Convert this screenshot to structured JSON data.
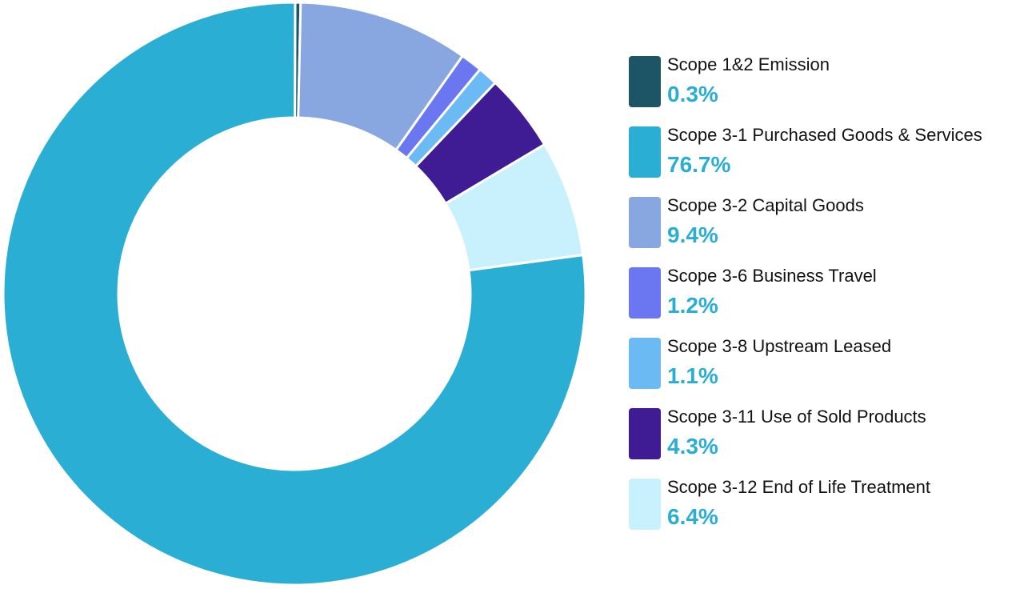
{
  "chart_data": {
    "type": "pie",
    "title": "",
    "categories": [
      "Scope 1&2 Emission",
      "Scope 3-1 Purchased Goods & Services",
      "Scope 3-2 Capital Goods",
      "Scope 3-6 Business Travel",
      "Scope 3-8 Upstream Leased",
      "Scope 3-11 Use of Sold Products",
      "Scope 3-12 End of Life Treatment"
    ],
    "values": [
      0.3,
      76.7,
      9.4,
      1.2,
      1.1,
      4.3,
      6.4
    ],
    "value_labels": [
      "0.3%",
      "76.7%",
      "9.4%",
      "1.2%",
      "1.1%",
      "4.3%",
      "6.4%"
    ],
    "colors": [
      "#1d5466",
      "#2aaed4",
      "#88a6e0",
      "#6b77f1",
      "#6bbaf3",
      "#3f1c93",
      "#c9f1fd"
    ],
    "value_label_color": "#2aaed4",
    "legend_position": "right",
    "chart_style": "donut"
  }
}
